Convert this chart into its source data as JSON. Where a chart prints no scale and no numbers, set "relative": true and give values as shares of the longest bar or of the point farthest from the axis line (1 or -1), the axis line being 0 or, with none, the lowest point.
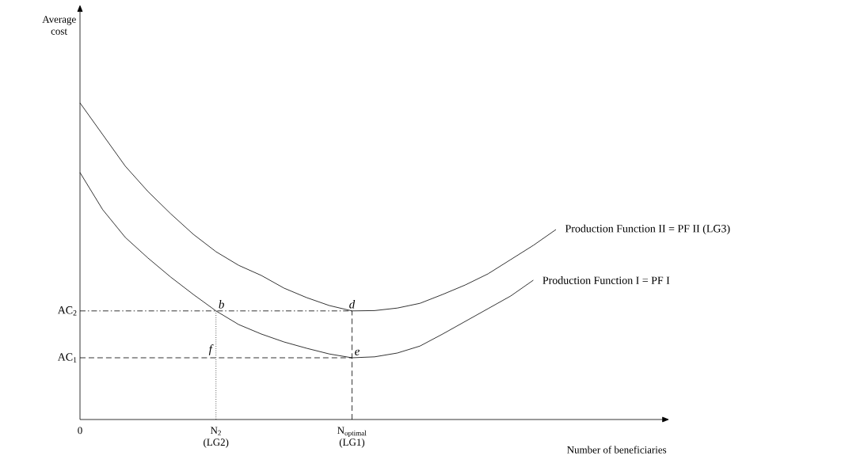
{
  "chart_data": {
    "type": "line",
    "relative": true,
    "xlabel": "Number of beneficiaries",
    "categories": [
      "0",
      null,
      null,
      null,
      null,
      null,
      "N$_{2}$ (LG2)",
      null,
      null,
      null,
      null,
      null,
      "N$_{optimal}$ (LG1)",
      null,
      null,
      null,
      null,
      null,
      null,
      null,
      null,
      null
    ],
    "series": [
      {
        "name": "Production Function II = PF II    (LG3)",
        "color": "#000000",
        "values": [
          1.0,
          0.9,
          0.8,
          0.72,
          0.65,
          0.585,
          0.53,
          0.487,
          0.455,
          0.415,
          0.385,
          0.36,
          0.343,
          0.344,
          0.352,
          0.367,
          0.395,
          0.425,
          0.46,
          0.505,
          0.55,
          0.6
        ]
      },
      {
        "name": "Production Function I = PF I",
        "color": "#000000",
        "values": [
          0.78,
          0.663,
          0.575,
          0.51,
          0.45,
          0.395,
          0.343,
          0.3,
          0.27,
          0.245,
          0.225,
          0.207,
          0.195,
          0.198,
          0.21,
          0.232,
          0.27,
          0.31,
          0.35,
          0.39,
          0.44,
          null
        ]
      }
    ],
    "ref_lines": [
      {
        "axis": "y",
        "value": 0.343,
        "label": "AC$_{2}$",
        "line_style": "dashdot"
      },
      {
        "axis": "y",
        "value": 0.195,
        "label": "AC$_{1}$",
        "line_style": "dashed"
      },
      {
        "axis": "x",
        "value": "N$_{2}$ (LG2)",
        "line_style": "dotted"
      },
      {
        "axis": "x",
        "value": "N$_{optimal}$ (LG1)",
        "line_style": "dashed"
      }
    ],
    "annotations": [
      "Average cost",
      {
        "text": "*b*",
        "x": "N$_{2}$ (LG2)",
        "y": 0.343
      },
      {
        "text": "*d*",
        "x": "N$_{optimal}$ (LG1)",
        "y": 0.343
      },
      {
        "text": "*e*",
        "x": "N$_{optimal}$ (LG1)",
        "y": 0.195
      },
      {
        "text": "*f*",
        "x": "N$_{2}$ (LG2)",
        "y": 0.195
      }
    ]
  }
}
